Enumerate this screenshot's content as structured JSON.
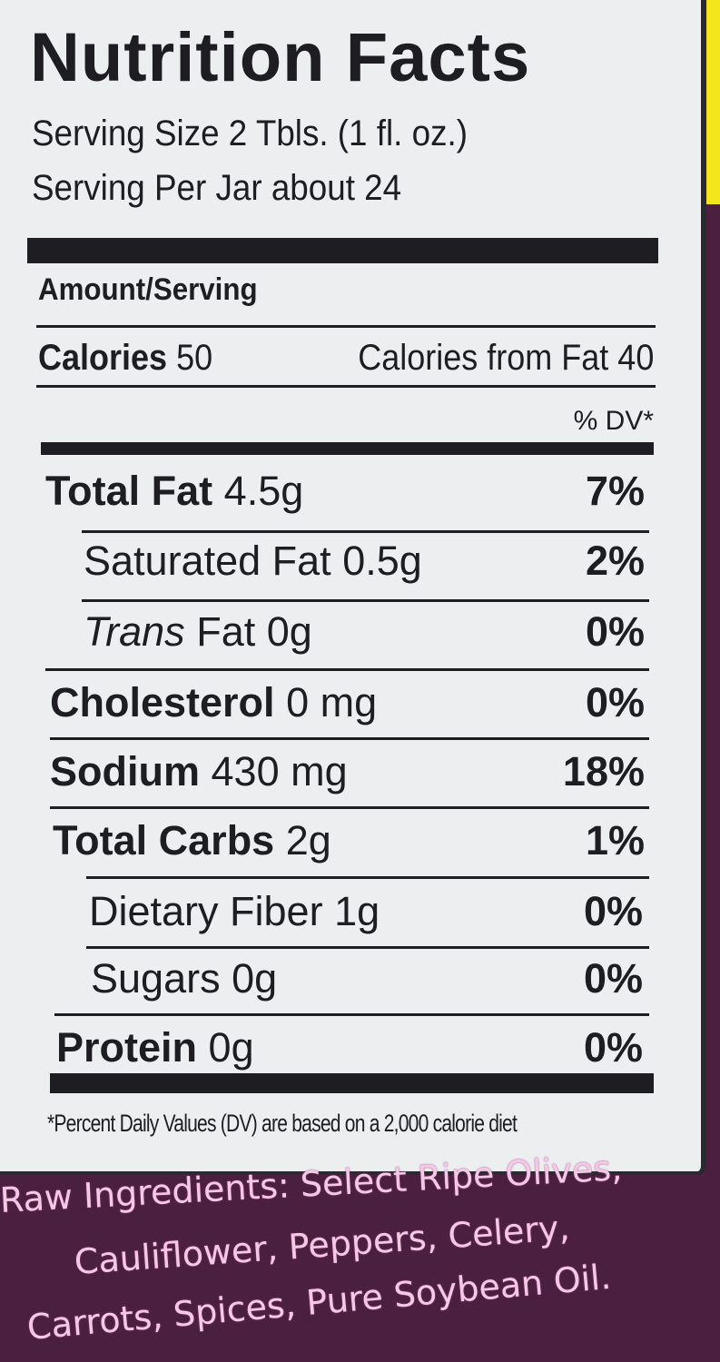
{
  "label": {
    "title": "Nutrition Facts",
    "serving_size": "Serving Size 2 Tbls. (1 fl. oz.)",
    "servings_per_container": "Serving Per Jar about 24",
    "amount_per_serving": "Amount/Serving",
    "calories_label": "Calories",
    "calories_value": "50",
    "calories_from_fat": "Calories from Fat 40",
    "dv_header": "% DV*",
    "nutrients": [
      {
        "name": "Total Fat",
        "amount": "4.5g",
        "dv": "7%"
      },
      {
        "name": "Saturated Fat",
        "amount": "0.5g",
        "dv": "2%"
      },
      {
        "name": "Trans",
        "name_suffix": "Fat",
        "amount": "0g",
        "dv": "0%"
      },
      {
        "name": "Cholesterol",
        "amount": "0 mg",
        "dv": "0%"
      },
      {
        "name": "Sodium",
        "amount": "430 mg",
        "dv": "18%"
      },
      {
        "name": "Total Carbs",
        "amount": "2g",
        "dv": "1%"
      },
      {
        "name": "Dietary Fiber",
        "amount": "1g",
        "dv": "0%"
      },
      {
        "name": "Sugars",
        "amount": "0g",
        "dv": "0%"
      },
      {
        "name": "Protein",
        "amount": "0g",
        "dv": "0%"
      }
    ],
    "footnote": "*Percent Daily Values (DV) are based on a 2,000 calorie diet"
  },
  "ingredients": {
    "line1": "Raw Ingredients: Select Ripe Olives,",
    "line2": "Cauliflower, Peppers, Celery,",
    "line3": "Carrots, Spices, Pure Soybean Oil."
  },
  "colors": {
    "background": "#4b1f3f",
    "label": "#eceef0",
    "ink": "#1e1e22",
    "accent_yellow": "#f2e71c",
    "ingredients_text": "#f3c9e6"
  }
}
